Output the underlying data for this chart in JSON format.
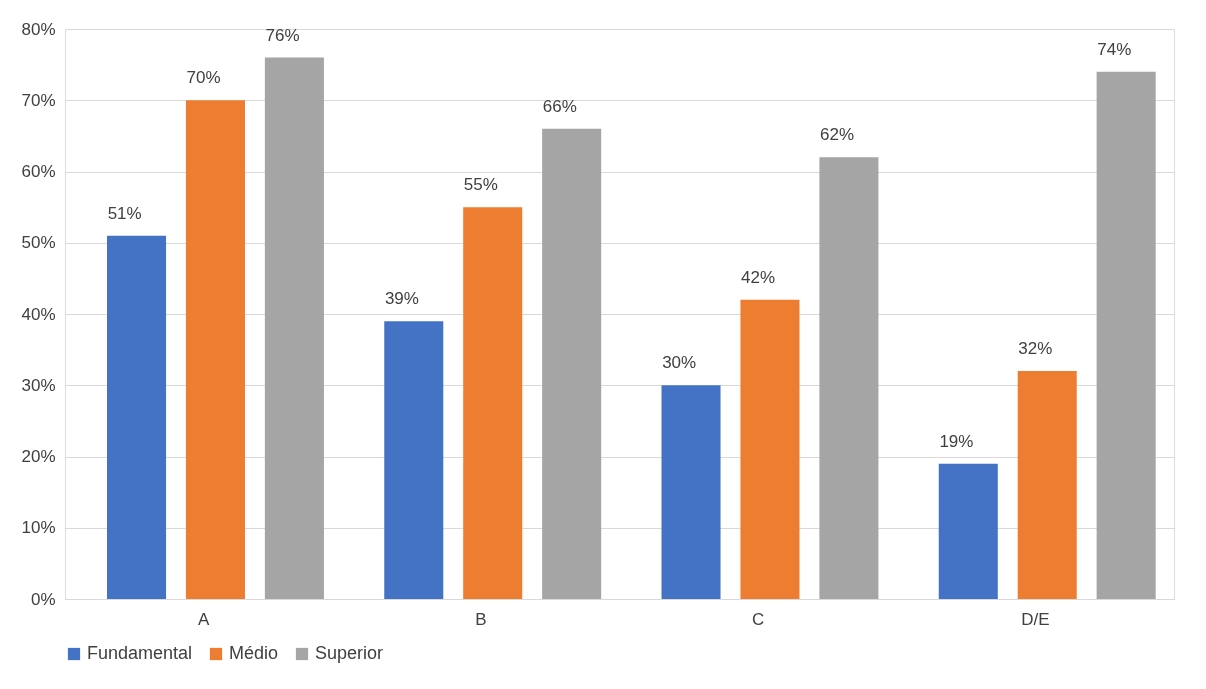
{
  "chart_data": {
    "type": "bar",
    "categories": [
      "A",
      "B",
      "C",
      "D/E"
    ],
    "series": [
      {
        "name": "Fundamental",
        "color": "#4472c4",
        "values": [
          51,
          39,
          30,
          19
        ],
        "value_labels": [
          "51%",
          "39%",
          "30%",
          "19%"
        ]
      },
      {
        "name": "Médio",
        "color": "#ed7d31",
        "values": [
          70,
          55,
          42,
          32
        ],
        "value_labels": [
          "70%",
          "55%",
          "42%",
          "32%"
        ]
      },
      {
        "name": "Superior",
        "color": "#a5a5a5",
        "values": [
          76,
          66,
          62,
          74
        ],
        "value_labels": [
          "76%",
          "66%",
          "62%",
          "74%"
        ]
      }
    ],
    "ylim": [
      0,
      80
    ],
    "yticks": [
      {
        "value": 0,
        "label": "0%"
      },
      {
        "value": 10,
        "label": "10%"
      },
      {
        "value": 20,
        "label": "20%"
      },
      {
        "value": 30,
        "label": "30%"
      },
      {
        "value": 40,
        "label": "40%"
      },
      {
        "value": 50,
        "label": "50%"
      },
      {
        "value": 60,
        "label": "60%"
      },
      {
        "value": 70,
        "label": "70%"
      },
      {
        "value": 80,
        "label": "80%"
      }
    ],
    "grid": "y",
    "legend": "bottom"
  }
}
